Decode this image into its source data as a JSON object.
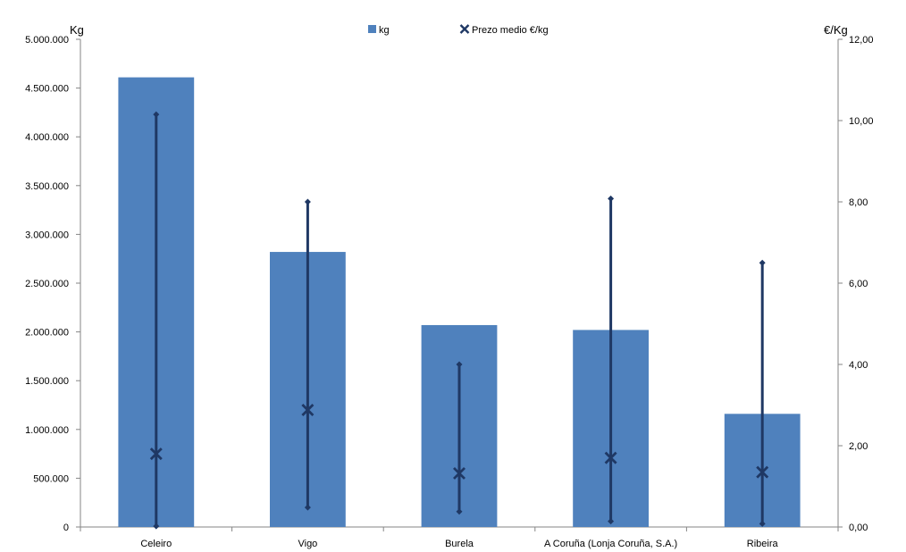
{
  "chart_data": {
    "type": "bar",
    "categories": [
      "Celeiro",
      "Vigo",
      "Burela",
      "A Coruña (Lonja Coruña, S.A.)",
      "Ribeira"
    ],
    "series": [
      {
        "name": "kg",
        "axis": "left",
        "type": "bar",
        "color": "#4F81BD",
        "values": [
          4610000,
          2820000,
          2070000,
          2020000,
          1160000
        ]
      },
      {
        "name": "Prezo medio €/kg",
        "axis": "right",
        "type": "scatter",
        "marker": "x",
        "color": "#1F3864",
        "values": [
          1.8,
          2.88,
          1.32,
          1.7,
          1.35
        ]
      }
    ],
    "price_range": {
      "color": "#1F3864",
      "min": [
        0.02,
        0.48,
        0.38,
        0.14,
        0.08
      ],
      "max": [
        10.15,
        8.0,
        4.0,
        8.08,
        6.5
      ]
    },
    "y_left": {
      "label": "Kg",
      "min": 0,
      "max": 5000000,
      "ticks": [
        0,
        500000,
        1000000,
        1500000,
        2000000,
        2500000,
        3000000,
        3500000,
        4000000,
        4500000,
        5000000
      ],
      "tick_labels": [
        "0",
        "500.000",
        "1.000.000",
        "1.500.000",
        "2.000.000",
        "2.500.000",
        "3.000.000",
        "3.500.000",
        "4.000.000",
        "4.500.000",
        "5.000.000"
      ]
    },
    "y_right": {
      "label": "€/Kg",
      "min": 0,
      "max": 12,
      "ticks": [
        0,
        2,
        4,
        6,
        8,
        10,
        12
      ],
      "tick_labels": [
        "0,00",
        "2,00",
        "4,00",
        "6,00",
        "8,00",
        "10,00",
        "12,00"
      ]
    },
    "legend": {
      "position": "top-center",
      "items": [
        "kg",
        "Prezo medio €/kg"
      ]
    },
    "grid": false
  }
}
